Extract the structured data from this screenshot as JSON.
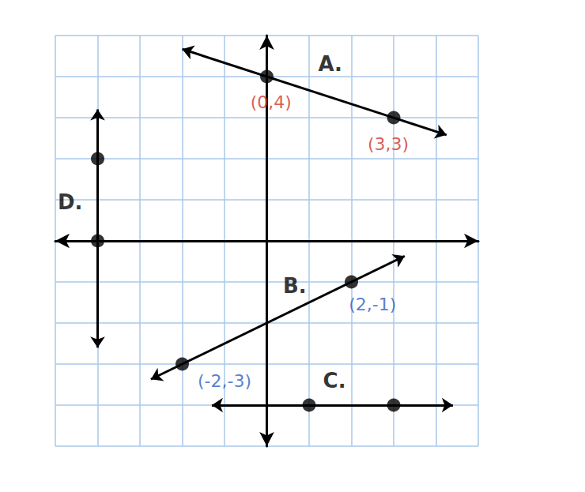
{
  "chart_data": {
    "type": "line",
    "grid": true,
    "tick_labels": false,
    "xlim": [
      -5,
      5
    ],
    "ylim": [
      -5,
      5
    ],
    "xticks": [
      -5,
      -4,
      -3,
      -2,
      -1,
      0,
      1,
      2,
      3,
      4,
      5
    ],
    "yticks": [
      -5,
      -4,
      -3,
      -2,
      -1,
      0,
      1,
      2,
      3,
      4,
      5
    ],
    "series": [
      {
        "name": "A.",
        "name_at": [
          1.5,
          4.3
        ],
        "color": "#000000",
        "line_style": "arrows",
        "marker": "circle",
        "x": [
          -2,
          4.25
        ],
        "values": [
          4.67,
          2.58
        ],
        "points": {
          "x": [
            0,
            3
          ],
          "values": [
            4,
            3
          ],
          "labels": [
            "(0,4)",
            "(3,3)"
          ],
          "label_at": [
            [
              0.1,
              3.37
            ],
            [
              2.87,
              2.35
            ]
          ],
          "label_color": "#d0342c"
        }
      },
      {
        "name": "B.",
        "name_at": [
          0.66,
          -1.1
        ],
        "color": "#000000",
        "line_style": "arrows",
        "marker": "circle",
        "x": [
          -2.74,
          3.26
        ],
        "values": [
          -3.37,
          -0.37
        ],
        "points": {
          "x": [
            -2,
            2
          ],
          "values": [
            -3,
            -1
          ],
          "labels": [
            "(-2,-3)",
            "(2,-1)"
          ],
          "label_at": [
            [
              -1.0,
              -3.42
            ],
            [
              2.5,
              -1.54
            ]
          ],
          "label_color": "#2a5fc1"
        }
      },
      {
        "name": "C.",
        "name_at": [
          1.6,
          -3.4
        ],
        "color": "#000000",
        "line_style": "arrows",
        "marker": "circle",
        "x": [
          -1.3,
          4.4
        ],
        "values": [
          -4,
          -4
        ],
        "points": {
          "x": [
            1,
            3
          ],
          "values": [
            -4,
            -4
          ]
        }
      },
      {
        "name": "D.",
        "name_at": [
          -4.65,
          0.95
        ],
        "color": "#000000",
        "line_style": "arrows",
        "marker": "circle",
        "x": [
          -4,
          -4
        ],
        "values": [
          3.2,
          -2.6
        ],
        "points": {
          "x": [
            -4,
            -4
          ],
          "values": [
            2,
            0
          ]
        }
      }
    ]
  }
}
